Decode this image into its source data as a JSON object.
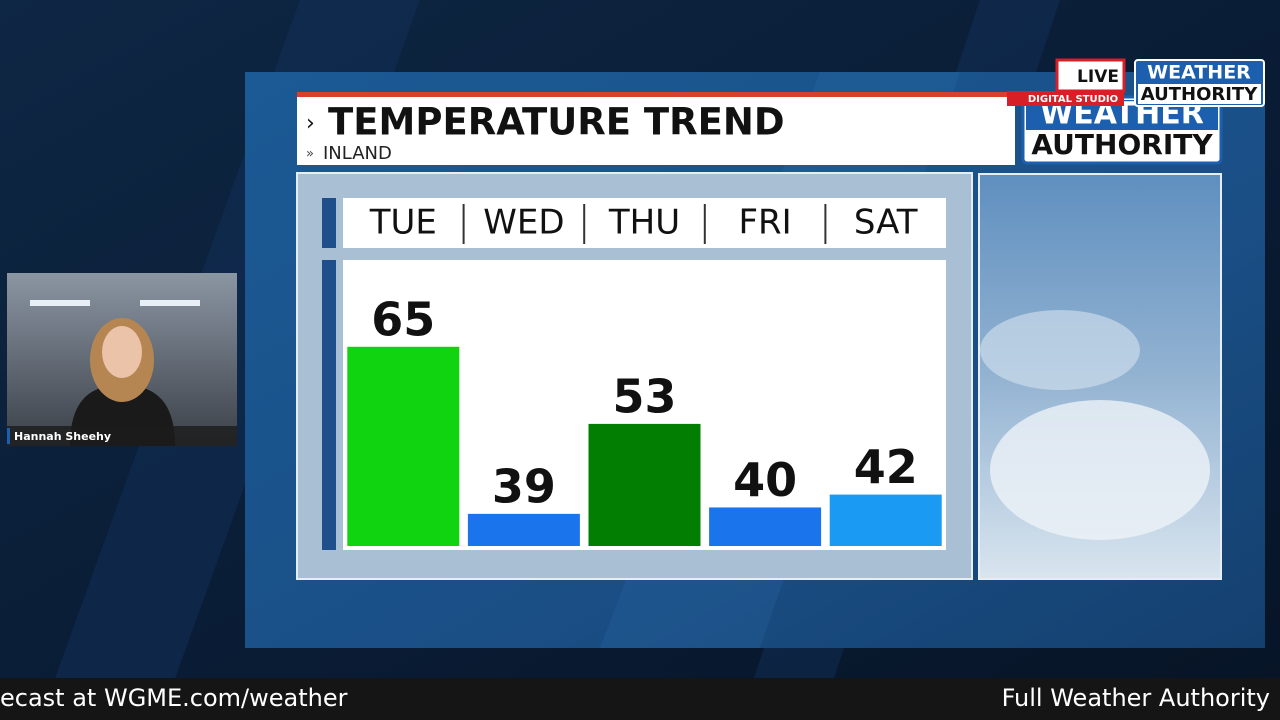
{
  "chart_data": {
    "type": "bar",
    "title": "TEMPERATURE TREND",
    "subtitle": "INLAND",
    "categories": [
      "TUE",
      "WED",
      "THU",
      "FRI",
      "SAT"
    ],
    "values": [
      65,
      39,
      53,
      40,
      42
    ],
    "colors": [
      "#10d410",
      "#1a74ec",
      "#027f02",
      "#1a74ec",
      "#1a9af2"
    ],
    "ylim": [
      34,
      78.5
    ]
  },
  "badge": {
    "live": "LIVE",
    "studio": "DIGITAL STUDIO"
  },
  "logos": [
    [
      "WEATHER",
      "AUTHORITY"
    ],
    [
      "WEATHER",
      "AUTHORITY"
    ]
  ],
  "presenter": "Hannah Sheehy",
  "ticker": [
    "ecast at WGME.com/weather",
    "Full Weather Authority"
  ]
}
